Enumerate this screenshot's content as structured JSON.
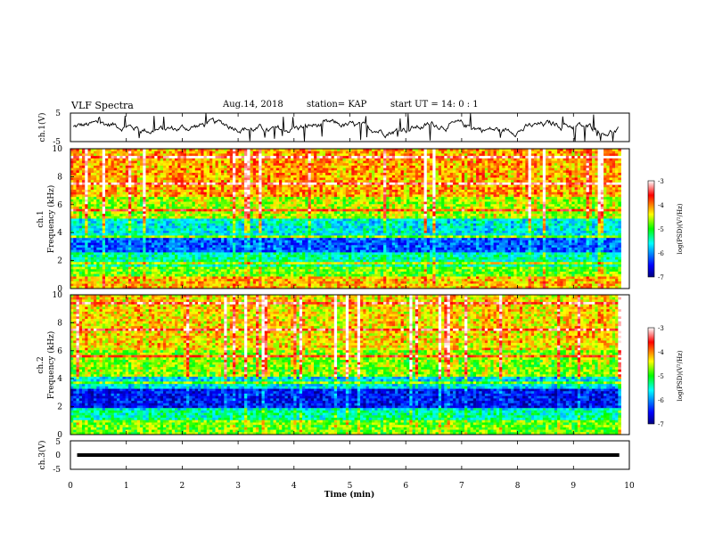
{
  "header": {
    "title": "VLF Spectra",
    "date": "Aug.14, 2018",
    "station": "station= KAP",
    "start": "start  UT  =   14: 0  : 1"
  },
  "chart_data": [
    {
      "type": "line",
      "panel": "ch1",
      "ylabel": "ch.1(V)",
      "ylim": [
        -5,
        5
      ],
      "yticks": [
        "5",
        "-5"
      ],
      "xlim": [
        0,
        10
      ],
      "note": "noisy waveform trace around 0 V",
      "color": "#000000"
    },
    {
      "type": "heatmap",
      "panel": "spec1",
      "ylabel": "ch.1\nFrequency  (kHz)",
      "ylim": [
        0,
        10
      ],
      "yticks": [
        "0",
        "2",
        "4",
        "6",
        "8",
        "10"
      ],
      "xlim": [
        0,
        10
      ],
      "colorbar": {
        "label": "log(PSD)(V²/Hz)",
        "range": [
          -7,
          -3
        ],
        "ticks": [
          "-3",
          "-4",
          "-5",
          "-6",
          "-7"
        ]
      },
      "band_levels": [
        {
          "f": [
            0,
            0.8
          ],
          "level": -4.2
        },
        {
          "f": [
            0.8,
            1.5
          ],
          "level": -4.8
        },
        {
          "f": [
            1.5,
            2.6
          ],
          "level": -5.4
        },
        {
          "f": [
            2.6,
            3.7
          ],
          "level": -6.2
        },
        {
          "f": [
            3.7,
            5.0
          ],
          "level": -5.6
        },
        {
          "f": [
            5.0,
            6.5
          ],
          "level": -4.6
        },
        {
          "f": [
            6.5,
            10
          ],
          "level": -4.1
        }
      ]
    },
    {
      "type": "heatmap",
      "panel": "spec2",
      "ylabel": "ch.2\nFrequency  (kHz)",
      "ylim": [
        0,
        10
      ],
      "yticks": [
        "0",
        "2",
        "4",
        "6",
        "8",
        "10"
      ],
      "xlim": [
        0,
        10
      ],
      "colorbar": {
        "label": "log(PSD)(V²/Hz)",
        "range": [
          -7,
          -3
        ],
        "ticks": [
          "-3",
          "-4",
          "-5",
          "-6",
          "-7"
        ]
      },
      "band_levels": [
        {
          "f": [
            0,
            1.0
          ],
          "level": -4.8
        },
        {
          "f": [
            1.0,
            1.7
          ],
          "level": -5.4
        },
        {
          "f": [
            1.7,
            3.2
          ],
          "level": -6.5
        },
        {
          "f": [
            3.2,
            4.2
          ],
          "level": -5.7
        },
        {
          "f": [
            4.2,
            6.0
          ],
          "level": -4.7
        },
        {
          "f": [
            6.0,
            10
          ],
          "level": -4.3
        }
      ]
    },
    {
      "type": "line",
      "panel": "ch3",
      "ylabel": "ch.3(V)",
      "ylim": [
        -5,
        5
      ],
      "yticks": [
        "5",
        "0",
        "-5"
      ],
      "xlim": [
        0,
        10
      ],
      "xlabel": "Time  (min)",
      "xticks": [
        "0",
        "1",
        "2",
        "3",
        "4",
        "5",
        "6",
        "7",
        "8",
        "9",
        "10"
      ],
      "note": "flat line near 0 V, from about 0.1 to 9.8 min",
      "color": "#000000"
    }
  ]
}
